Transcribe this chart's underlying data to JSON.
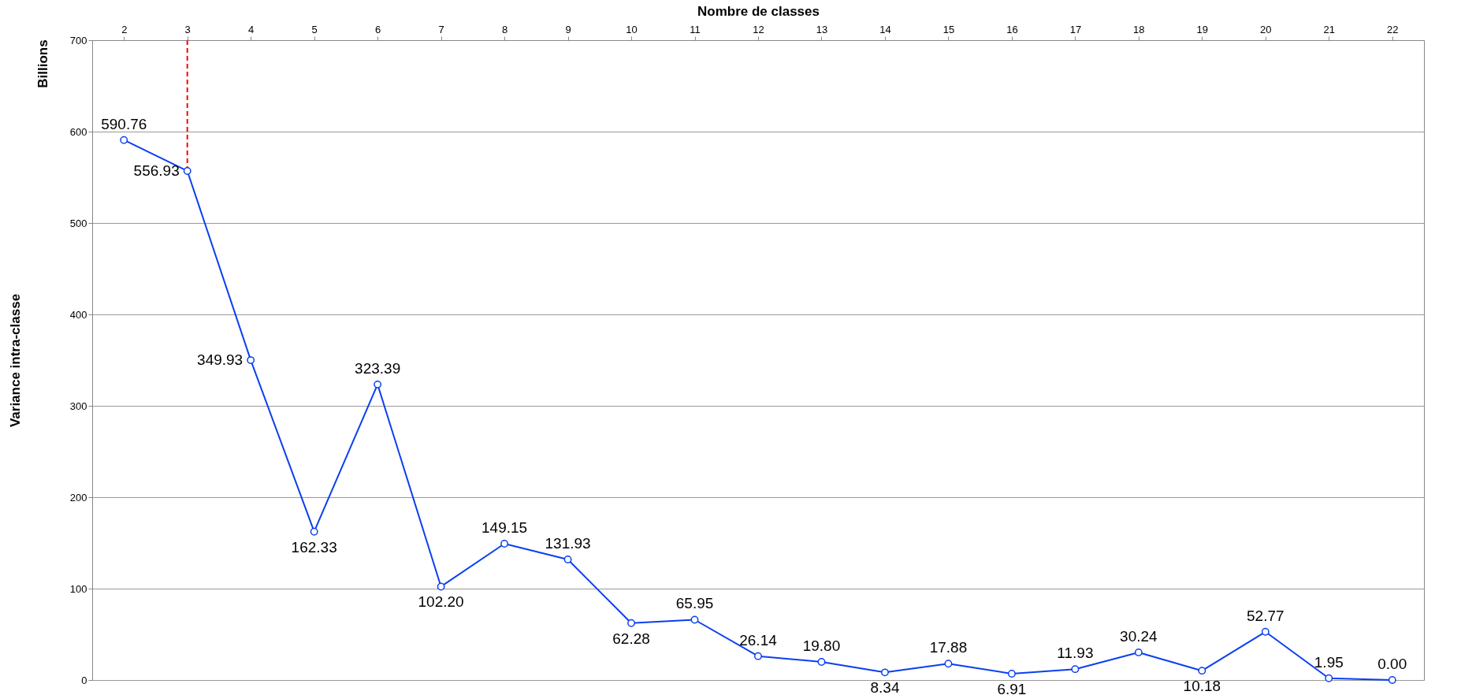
{
  "chart_data": {
    "type": "line",
    "xlabel": "Nombre de classes",
    "ylabel": "Variance intra-classe",
    "annotations": [
      "Billions"
    ],
    "categories": [
      "2",
      "3",
      "4",
      "5",
      "6",
      "7",
      "8",
      "9",
      "10",
      "11",
      "12",
      "13",
      "14",
      "15",
      "16",
      "17",
      "18",
      "19",
      "20",
      "21",
      "22"
    ],
    "series": [
      {
        "color": "#0a3ff0",
        "values": [
          590.76,
          556.93,
          349.93,
          162.33,
          323.39,
          102.2,
          149.15,
          131.93,
          62.28,
          65.95,
          26.14,
          19.8,
          8.34,
          17.88,
          6.91,
          11.93,
          30.24,
          10.18,
          52.77,
          1.95,
          0
        ],
        "value_labels": [
          "590.76",
          "556.93",
          "349.93",
          "162.33",
          "323.39",
          "102.20",
          "149.15",
          "131.93",
          "62.28",
          "65.95",
          "26.14",
          "19.80",
          "8.34",
          "17.88",
          "6.91",
          "11.93",
          "30.24",
          "10.18",
          "52.77",
          "1.95",
          "0.00"
        ]
      }
    ],
    "ylim": [
      0,
      700
    ],
    "yticks": [
      0,
      100,
      200,
      300,
      400,
      500,
      600,
      700
    ],
    "grid": "y",
    "marker": "circle",
    "line_style": "solid",
    "ref_lines": [
      {
        "axis": "x",
        "value": "3",
        "color": "#ff0000",
        "line_style": "dashed"
      }
    ]
  }
}
